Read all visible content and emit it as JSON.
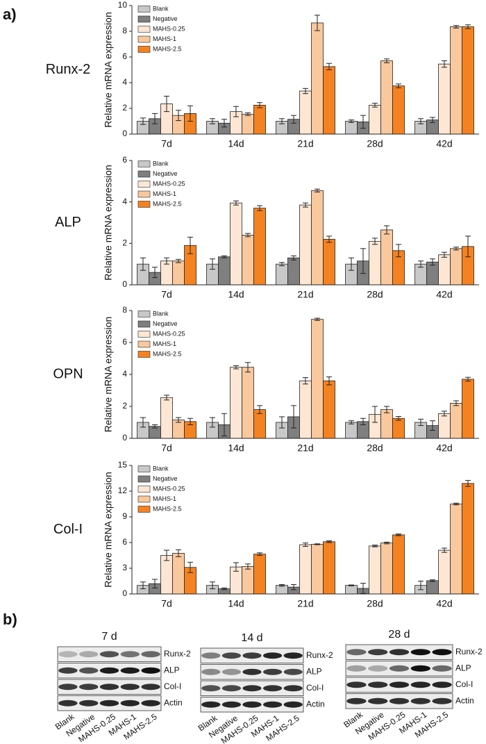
{
  "panel_labels": [
    "a)",
    "b)"
  ],
  "chart_data": [
    {
      "type": "bar",
      "title": "Runx-2",
      "y_label": "Relative mRNA expression",
      "legend": "upper left",
      "categories": [
        "7d",
        "14d",
        "21d",
        "28d",
        "42d"
      ],
      "ylim": [
        0,
        10
      ],
      "yticks": [
        0,
        2,
        4,
        6,
        8,
        10
      ],
      "series": [
        {
          "name": "Blank",
          "color": "#c8c8c8",
          "values": [
            1.0,
            1.0,
            1.0,
            1.0,
            1.0
          ],
          "errors": [
            0.25,
            0.2,
            0.2,
            0.1,
            0.2
          ]
        },
        {
          "name": "Negative",
          "color": "#7f7f7f",
          "values": [
            1.2,
            0.85,
            1.15,
            0.95,
            1.1
          ],
          "errors": [
            0.4,
            0.3,
            0.3,
            0.5,
            0.2
          ]
        },
        {
          "name": "MAHS-0.25",
          "color": "#fde7d4",
          "values": [
            2.35,
            1.75,
            3.35,
            2.25,
            5.45
          ],
          "errors": [
            0.6,
            0.4,
            0.2,
            0.15,
            0.25
          ]
        },
        {
          "name": "MAHS-1",
          "color": "#f9c89c",
          "values": [
            1.45,
            1.55,
            8.65,
            5.7,
            8.35
          ],
          "errors": [
            0.4,
            0.1,
            0.6,
            0.15,
            0.1
          ]
        },
        {
          "name": "MAHS-2.5",
          "color": "#f58220",
          "values": [
            1.6,
            2.25,
            5.25,
            3.75,
            8.35
          ],
          "errors": [
            0.6,
            0.2,
            0.25,
            0.15,
            0.15
          ]
        }
      ]
    },
    {
      "type": "bar",
      "title": "ALP",
      "y_label": "Relative mRNA expression",
      "legend": "upper left",
      "categories": [
        "7d",
        "14d",
        "21d",
        "28d",
        "42d"
      ],
      "ylim": [
        0,
        6
      ],
      "yticks": [
        0,
        2,
        4,
        6
      ],
      "series": [
        {
          "name": "Blank",
          "color": "#c8c8c8",
          "values": [
            1.0,
            1.0,
            1.0,
            1.0,
            1.0
          ],
          "errors": [
            0.3,
            0.25,
            0.08,
            0.3,
            0.15
          ]
        },
        {
          "name": "Negative",
          "color": "#7f7f7f",
          "values": [
            0.6,
            1.35,
            1.3,
            1.15,
            1.1
          ],
          "errors": [
            0.25,
            0.05,
            0.1,
            0.6,
            0.15
          ]
        },
        {
          "name": "MAHS-0.25",
          "color": "#fde7d4",
          "values": [
            1.15,
            3.95,
            3.85,
            2.1,
            1.45
          ],
          "errors": [
            0.15,
            0.1,
            0.1,
            0.15,
            0.12
          ]
        },
        {
          "name": "MAHS-1",
          "color": "#f9c89c",
          "values": [
            1.15,
            2.4,
            4.55,
            2.65,
            1.75
          ],
          "errors": [
            0.08,
            0.08,
            0.07,
            0.2,
            0.07
          ]
        },
        {
          "name": "MAHS-2.5",
          "color": "#f58220",
          "values": [
            1.9,
            3.7,
            2.2,
            1.65,
            1.85
          ],
          "errors": [
            0.4,
            0.12,
            0.15,
            0.3,
            0.5
          ]
        }
      ]
    },
    {
      "type": "bar",
      "title": "OPN",
      "y_label": "Relative mRNA expression",
      "legend": "upper left",
      "categories": [
        "7d",
        "14d",
        "21d",
        "28d",
        "42d"
      ],
      "ylim": [
        0,
        8
      ],
      "yticks": [
        0,
        2,
        4,
        6,
        8
      ],
      "series": [
        {
          "name": "Blank",
          "color": "#c8c8c8",
          "values": [
            1.0,
            1.0,
            1.0,
            1.0,
            1.0
          ],
          "errors": [
            0.3,
            0.3,
            0.35,
            0.1,
            0.2
          ]
        },
        {
          "name": "Negative",
          "color": "#7f7f7f",
          "values": [
            0.75,
            0.85,
            1.35,
            1.05,
            0.8
          ],
          "errors": [
            0.1,
            0.7,
            0.7,
            0.2,
            0.3
          ]
        },
        {
          "name": "MAHS-0.25",
          "color": "#fde7d4",
          "values": [
            2.55,
            4.45,
            3.6,
            1.5,
            1.55
          ],
          "errors": [
            0.15,
            0.1,
            0.2,
            0.5,
            0.15
          ]
        },
        {
          "name": "MAHS-1",
          "color": "#f9c89c",
          "values": [
            1.15,
            4.45,
            7.45,
            1.8,
            2.2
          ],
          "errors": [
            0.15,
            0.3,
            0.07,
            0.2,
            0.15
          ]
        },
        {
          "name": "MAHS-2.5",
          "color": "#f58220",
          "values": [
            1.05,
            1.8,
            3.6,
            1.25,
            3.7
          ],
          "errors": [
            0.2,
            0.25,
            0.25,
            0.12,
            0.12
          ]
        }
      ]
    },
    {
      "type": "bar",
      "title": "Col-I",
      "y_label": "Relative mRNA expression",
      "legend": "upper left",
      "categories": [
        "7d",
        "14d",
        "21d",
        "28d",
        "42d"
      ],
      "ylim": [
        0,
        15
      ],
      "yticks": [
        0,
        3,
        6,
        9,
        12,
        15
      ],
      "series": [
        {
          "name": "Blank",
          "color": "#c8c8c8",
          "values": [
            1.0,
            1.0,
            1.0,
            1.0,
            1.0
          ],
          "errors": [
            0.4,
            0.4,
            0.1,
            0.05,
            0.5
          ]
        },
        {
          "name": "Negative",
          "color": "#7f7f7f",
          "values": [
            1.2,
            0.6,
            0.8,
            0.65,
            1.55
          ],
          "errors": [
            0.5,
            0.1,
            0.3,
            0.6,
            0.1
          ]
        },
        {
          "name": "MAHS-0.25",
          "color": "#fde7d4",
          "values": [
            4.5,
            3.15,
            5.75,
            5.6,
            5.1
          ],
          "errors": [
            0.6,
            0.5,
            0.2,
            0.1,
            0.25
          ]
        },
        {
          "name": "MAHS-1",
          "color": "#f9c89c",
          "values": [
            4.75,
            3.2,
            5.8,
            5.95,
            10.5
          ],
          "errors": [
            0.4,
            0.3,
            0.05,
            0.1,
            0.1
          ]
        },
        {
          "name": "MAHS-2.5",
          "color": "#f58220",
          "values": [
            3.1,
            4.65,
            6.1,
            6.9,
            12.9
          ],
          "errors": [
            0.6,
            0.15,
            0.1,
            0.1,
            0.35
          ]
        }
      ]
    }
  ],
  "western_blots": [
    {
      "title": "7 d",
      "rows": [
        "Runx-2",
        "ALP",
        "Col-I",
        "Actin"
      ],
      "lanes": [
        "Blank",
        "Negative",
        "MAHS-0.25",
        "MAHS-1",
        "MAHS-2.5"
      ]
    },
    {
      "title": "14 d",
      "rows": [
        "Runx-2",
        "ALP",
        "Col-I",
        "Actin"
      ],
      "lanes": [
        "Blank",
        "Negative",
        "MAHS-0.25",
        "MAHS-1",
        "MAHS-2.5"
      ]
    },
    {
      "title": "28 d",
      "rows": [
        "Runx-2",
        "ALP",
        "Col-I",
        "Actin"
      ],
      "lanes": [
        "Blank",
        "Negative",
        "MAHS-0.25",
        "MAHS-1",
        "MAHS-2.5"
      ]
    }
  ]
}
